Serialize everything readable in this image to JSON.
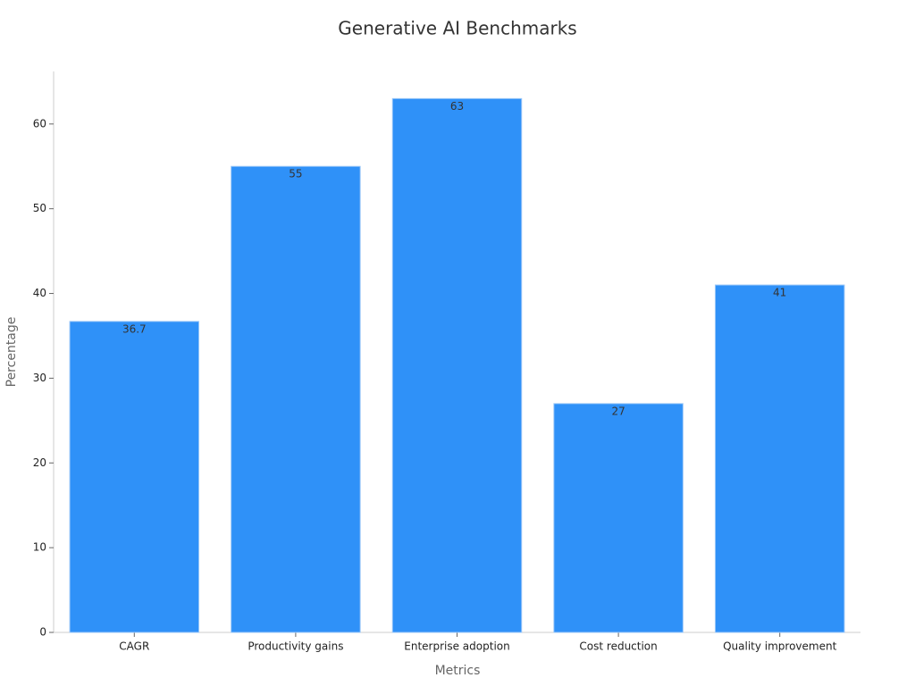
{
  "chart_data": {
    "type": "bar",
    "title": "Generative AI Benchmarks",
    "x_label": "Metrics",
    "y_label": "Percentage",
    "categories": [
      "CAGR",
      "Productivity gains",
      "Enterprise adoption",
      "Cost reduction",
      "Quality improvement"
    ],
    "values": [
      36.7,
      55,
      63,
      27,
      41
    ],
    "color": "#2f91f8",
    "ylim": [
      0,
      66.2
    ],
    "yticks": [
      0,
      10,
      20,
      30,
      40,
      50,
      60
    ],
    "grid": false
  }
}
